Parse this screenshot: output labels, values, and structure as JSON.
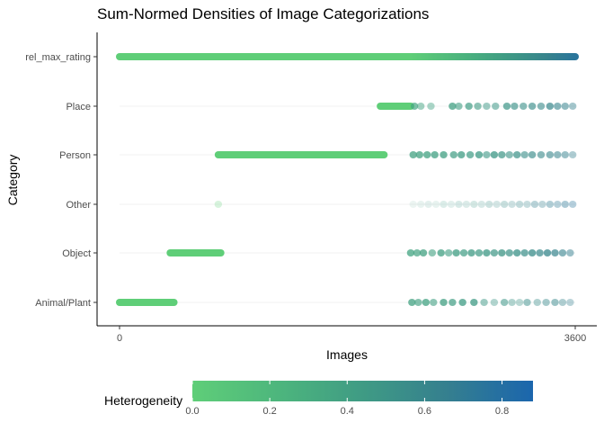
{
  "chart_data": {
    "type": "scatter",
    "title": "Sum-Normed Densities of Image Categorizations",
    "xlabel": "Images",
    "ylabel": "Category",
    "xlim": [
      0,
      3600
    ],
    "x_ticks": [
      0,
      3600
    ],
    "x_tick_labels": [
      "0",
      "3600"
    ],
    "categories": [
      "Animal/Plant",
      "Object",
      "Other",
      "Person",
      "Place",
      "rel_max_rating"
    ],
    "legend": {
      "title": "Heterogeneity",
      "placement": "bottom",
      "range": [
        0,
        0.88
      ],
      "ticks": [
        0.0,
        0.2,
        0.4,
        0.6,
        0.8
      ],
      "tick_labels": [
        "0.0",
        "0.2",
        "0.4",
        "0.6",
        "0.8"
      ],
      "colors": [
        "#5fce78",
        "#4db67d",
        "#3f9b84",
        "#357f8f",
        "#1b66ad"
      ]
    },
    "series": [
      {
        "name": "Animal/Plant",
        "segments": [
          {
            "start": 0,
            "end": 430,
            "heterogeneity": 0.0
          }
        ],
        "points": [
          {
            "x": 2310,
            "h": 0.38,
            "a": 0.75
          },
          {
            "x": 2360,
            "h": 0.38,
            "a": 0.65
          },
          {
            "x": 2420,
            "h": 0.39,
            "a": 0.75
          },
          {
            "x": 2480,
            "h": 0.4,
            "a": 0.6
          },
          {
            "x": 2560,
            "h": 0.41,
            "a": 0.75
          },
          {
            "x": 2630,
            "h": 0.42,
            "a": 0.7
          },
          {
            "x": 2710,
            "h": 0.43,
            "a": 0.75
          },
          {
            "x": 2800,
            "h": 0.44,
            "a": 0.75
          },
          {
            "x": 2880,
            "h": 0.46,
            "a": 0.5
          },
          {
            "x": 2960,
            "h": 0.47,
            "a": 0.4
          },
          {
            "x": 3040,
            "h": 0.48,
            "a": 0.55
          },
          {
            "x": 3100,
            "h": 0.5,
            "a": 0.4
          },
          {
            "x": 3160,
            "h": 0.52,
            "a": 0.35
          },
          {
            "x": 3220,
            "h": 0.54,
            "a": 0.5
          },
          {
            "x": 3300,
            "h": 0.56,
            "a": 0.4
          },
          {
            "x": 3370,
            "h": 0.58,
            "a": 0.45
          },
          {
            "x": 3440,
            "h": 0.6,
            "a": 0.5
          },
          {
            "x": 3500,
            "h": 0.62,
            "a": 0.4
          },
          {
            "x": 3560,
            "h": 0.64,
            "a": 0.35
          }
        ]
      },
      {
        "name": "Object",
        "segments": [
          {
            "start": 400,
            "end": 800,
            "heterogeneity": 0.0
          }
        ],
        "points": [
          {
            "x": 2300,
            "h": 0.37,
            "a": 0.75
          },
          {
            "x": 2350,
            "h": 0.38,
            "a": 0.7
          },
          {
            "x": 2400,
            "h": 0.38,
            "a": 0.75
          },
          {
            "x": 2470,
            "h": 0.39,
            "a": 0.6
          },
          {
            "x": 2540,
            "h": 0.4,
            "a": 0.75
          },
          {
            "x": 2600,
            "h": 0.41,
            "a": 0.6
          },
          {
            "x": 2660,
            "h": 0.42,
            "a": 0.75
          },
          {
            "x": 2720,
            "h": 0.43,
            "a": 0.7
          },
          {
            "x": 2780,
            "h": 0.44,
            "a": 0.75
          },
          {
            "x": 2840,
            "h": 0.45,
            "a": 0.7
          },
          {
            "x": 2900,
            "h": 0.46,
            "a": 0.75
          },
          {
            "x": 2960,
            "h": 0.47,
            "a": 0.7
          },
          {
            "x": 3020,
            "h": 0.48,
            "a": 0.75
          },
          {
            "x": 3080,
            "h": 0.5,
            "a": 0.7
          },
          {
            "x": 3140,
            "h": 0.52,
            "a": 0.75
          },
          {
            "x": 3200,
            "h": 0.54,
            "a": 0.7
          },
          {
            "x": 3260,
            "h": 0.56,
            "a": 0.75
          },
          {
            "x": 3320,
            "h": 0.58,
            "a": 0.7
          },
          {
            "x": 3380,
            "h": 0.6,
            "a": 0.75
          },
          {
            "x": 3440,
            "h": 0.62,
            "a": 0.7
          },
          {
            "x": 3500,
            "h": 0.64,
            "a": 0.6
          },
          {
            "x": 3560,
            "h": 0.66,
            "a": 0.5
          }
        ]
      },
      {
        "name": "Other",
        "segments": [],
        "points": [
          {
            "x": 780,
            "h": 0.0,
            "a": 0.25
          },
          {
            "x": 2320,
            "h": 0.4,
            "a": 0.1
          },
          {
            "x": 2380,
            "h": 0.41,
            "a": 0.12
          },
          {
            "x": 2440,
            "h": 0.42,
            "a": 0.15
          },
          {
            "x": 2500,
            "h": 0.43,
            "a": 0.12
          },
          {
            "x": 2560,
            "h": 0.44,
            "a": 0.18
          },
          {
            "x": 2620,
            "h": 0.45,
            "a": 0.15
          },
          {
            "x": 2680,
            "h": 0.46,
            "a": 0.2
          },
          {
            "x": 2740,
            "h": 0.47,
            "a": 0.18
          },
          {
            "x": 2800,
            "h": 0.48,
            "a": 0.22
          },
          {
            "x": 2860,
            "h": 0.5,
            "a": 0.2
          },
          {
            "x": 2920,
            "h": 0.52,
            "a": 0.25
          },
          {
            "x": 2980,
            "h": 0.54,
            "a": 0.22
          },
          {
            "x": 3040,
            "h": 0.56,
            "a": 0.28
          },
          {
            "x": 3100,
            "h": 0.58,
            "a": 0.25
          },
          {
            "x": 3160,
            "h": 0.6,
            "a": 0.3
          },
          {
            "x": 3220,
            "h": 0.62,
            "a": 0.28
          },
          {
            "x": 3280,
            "h": 0.64,
            "a": 0.35
          },
          {
            "x": 3340,
            "h": 0.66,
            "a": 0.32
          },
          {
            "x": 3400,
            "h": 0.68,
            "a": 0.38
          },
          {
            "x": 3460,
            "h": 0.7,
            "a": 0.35
          },
          {
            "x": 3520,
            "h": 0.72,
            "a": 0.4
          },
          {
            "x": 3580,
            "h": 0.74,
            "a": 0.35
          }
        ]
      },
      {
        "name": "Person",
        "segments": [
          {
            "start": 780,
            "end": 2090,
            "heterogeneity": 0.0
          }
        ],
        "points": [
          {
            "x": 2320,
            "h": 0.38,
            "a": 0.75
          },
          {
            "x": 2370,
            "h": 0.38,
            "a": 0.75
          },
          {
            "x": 2430,
            "h": 0.39,
            "a": 0.75
          },
          {
            "x": 2490,
            "h": 0.4,
            "a": 0.75
          },
          {
            "x": 2560,
            "h": 0.41,
            "a": 0.75
          },
          {
            "x": 2640,
            "h": 0.42,
            "a": 0.7
          },
          {
            "x": 2700,
            "h": 0.43,
            "a": 0.75
          },
          {
            "x": 2770,
            "h": 0.44,
            "a": 0.7
          },
          {
            "x": 2840,
            "h": 0.45,
            "a": 0.75
          },
          {
            "x": 2900,
            "h": 0.46,
            "a": 0.6
          },
          {
            "x": 2960,
            "h": 0.47,
            "a": 0.75
          },
          {
            "x": 3020,
            "h": 0.48,
            "a": 0.7
          },
          {
            "x": 3080,
            "h": 0.5,
            "a": 0.6
          },
          {
            "x": 3140,
            "h": 0.52,
            "a": 0.7
          },
          {
            "x": 3200,
            "h": 0.54,
            "a": 0.6
          },
          {
            "x": 3260,
            "h": 0.56,
            "a": 0.65
          },
          {
            "x": 3330,
            "h": 0.58,
            "a": 0.6
          },
          {
            "x": 3400,
            "h": 0.6,
            "a": 0.6
          },
          {
            "x": 3460,
            "h": 0.62,
            "a": 0.55
          },
          {
            "x": 3520,
            "h": 0.64,
            "a": 0.5
          },
          {
            "x": 3580,
            "h": 0.66,
            "a": 0.4
          }
        ]
      },
      {
        "name": "Place",
        "segments": [
          {
            "start": 2060,
            "end": 2300,
            "heterogeneity": 0.0
          }
        ],
        "points": [
          {
            "x": 2330,
            "h": 0.36,
            "a": 0.7
          },
          {
            "x": 2380,
            "h": 0.37,
            "a": 0.5
          },
          {
            "x": 2460,
            "h": 0.38,
            "a": 0.45
          },
          {
            "x": 2630,
            "h": 0.4,
            "a": 0.75
          },
          {
            "x": 2680,
            "h": 0.41,
            "a": 0.6
          },
          {
            "x": 2760,
            "h": 0.43,
            "a": 0.7
          },
          {
            "x": 2830,
            "h": 0.44,
            "a": 0.6
          },
          {
            "x": 2900,
            "h": 0.46,
            "a": 0.5
          },
          {
            "x": 2970,
            "h": 0.47,
            "a": 0.55
          },
          {
            "x": 3060,
            "h": 0.49,
            "a": 0.7
          },
          {
            "x": 3120,
            "h": 0.51,
            "a": 0.65
          },
          {
            "x": 3190,
            "h": 0.53,
            "a": 0.6
          },
          {
            "x": 3260,
            "h": 0.55,
            "a": 0.65
          },
          {
            "x": 3330,
            "h": 0.57,
            "a": 0.6
          },
          {
            "x": 3400,
            "h": 0.59,
            "a": 0.7
          },
          {
            "x": 3460,
            "h": 0.61,
            "a": 0.6
          },
          {
            "x": 3520,
            "h": 0.63,
            "a": 0.55
          },
          {
            "x": 3580,
            "h": 0.65,
            "a": 0.45
          }
        ]
      },
      {
        "name": "rel_max_rating",
        "segments": [
          {
            "start": 0,
            "end": 2300,
            "heterogeneity": 0.0
          },
          {
            "start": 2300,
            "end": 3600,
            "heterogeneity_from": 0.0,
            "heterogeneity_to": 0.75
          }
        ],
        "points": []
      }
    ]
  }
}
